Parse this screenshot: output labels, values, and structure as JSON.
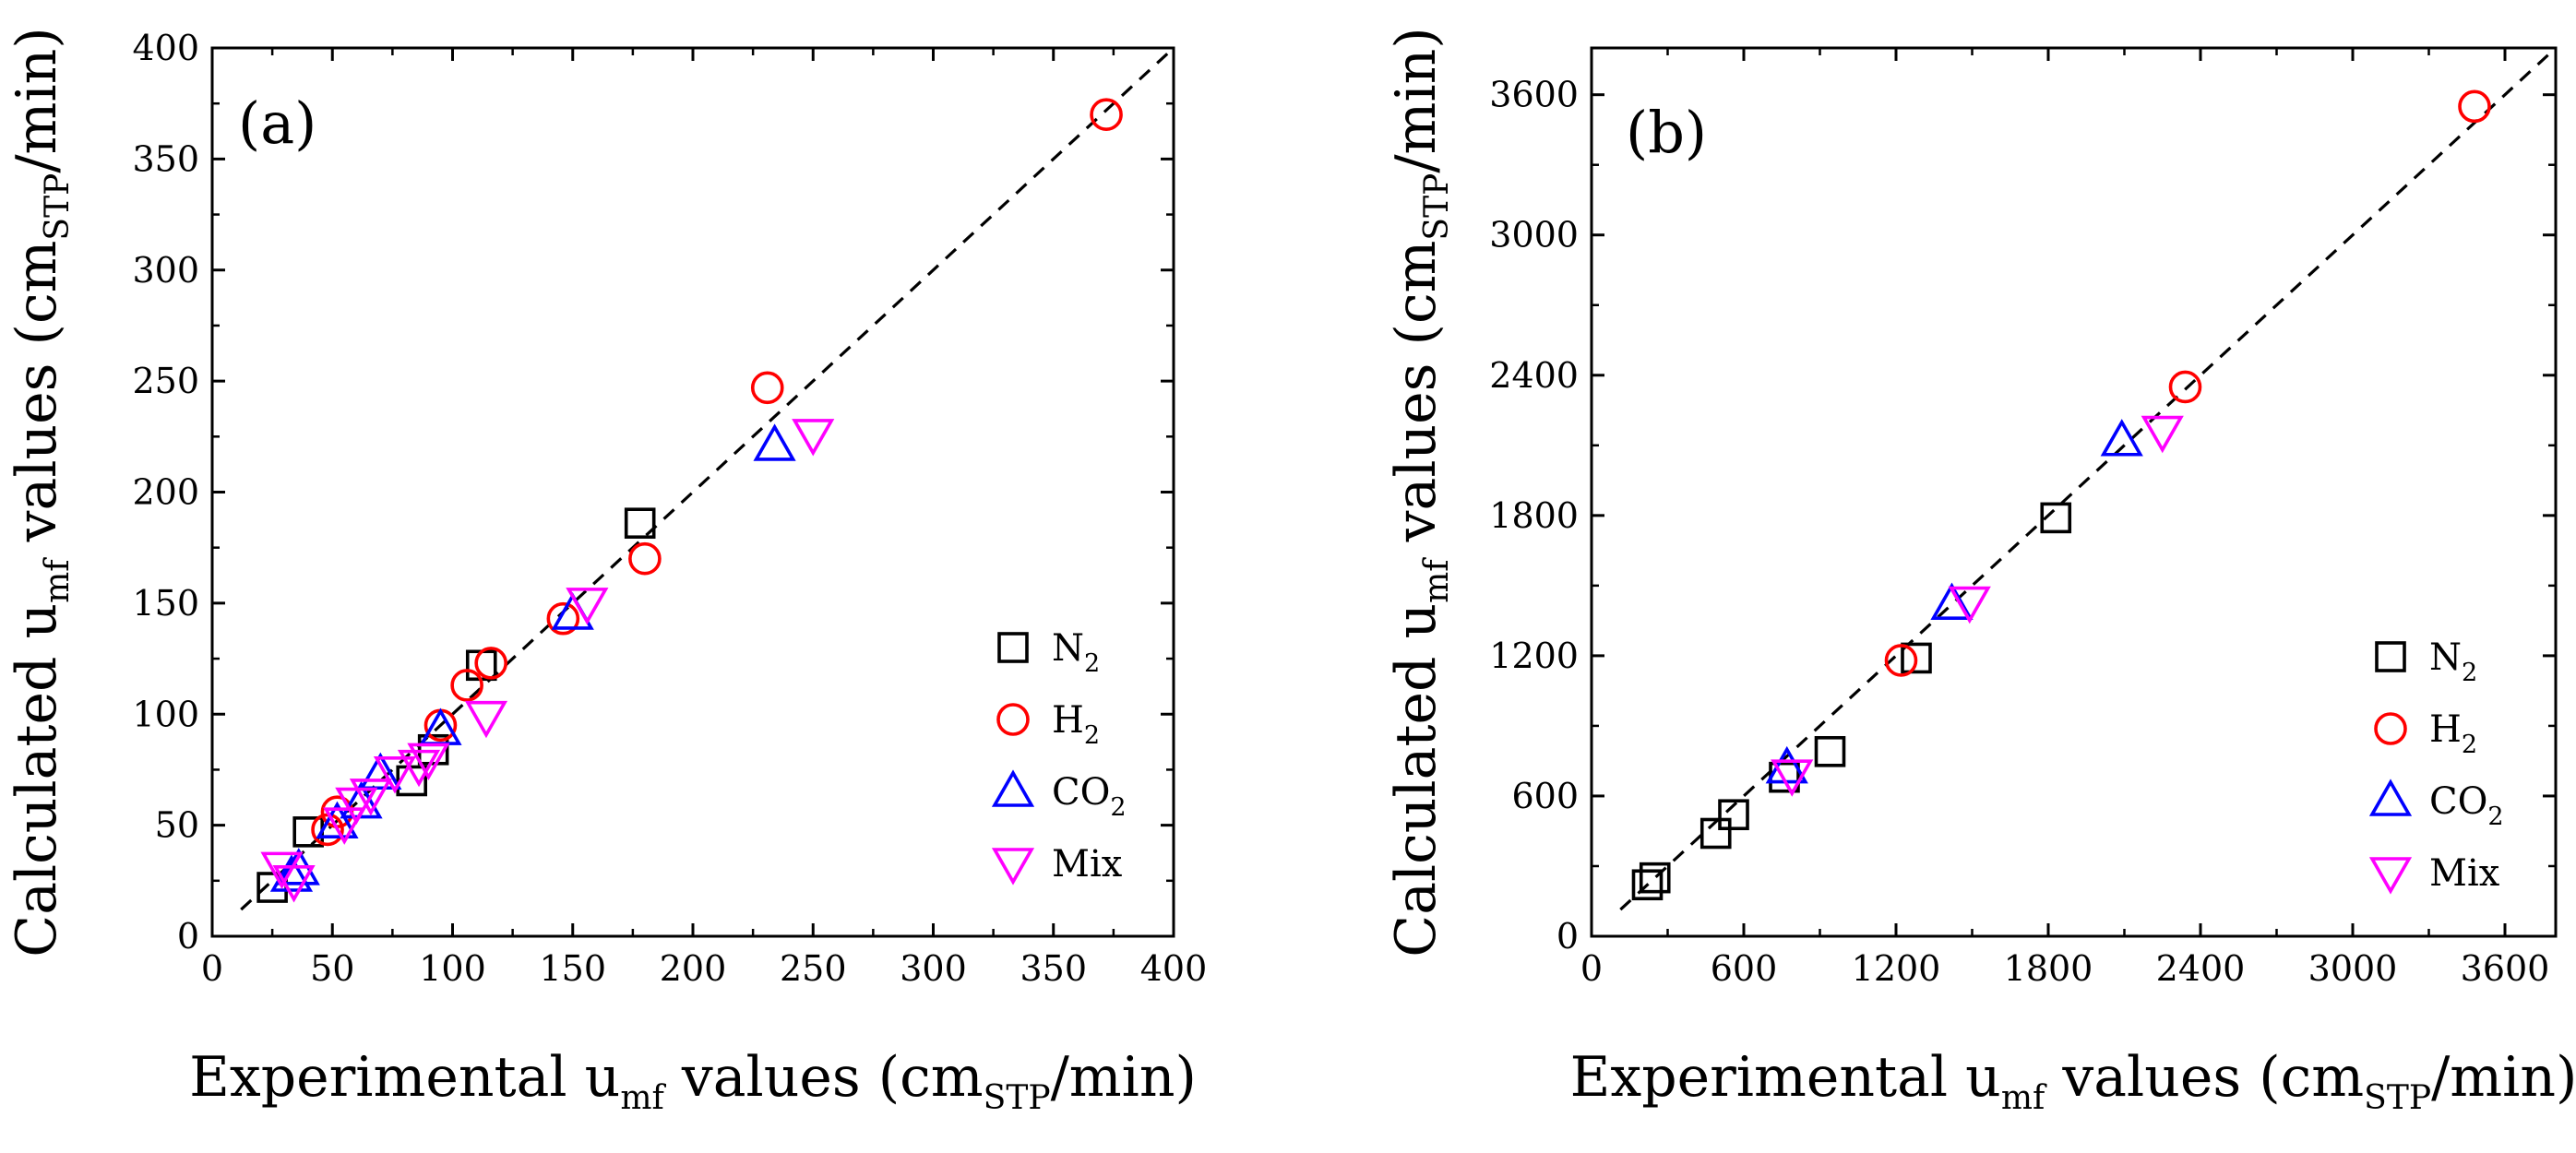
{
  "chart_data": [
    {
      "type": "scatter",
      "panel_label": "(a)",
      "xlabel": {
        "prefix": "Experimental u",
        "sub1": "mf",
        "middle": " values (cm",
        "sub2": "STP",
        "suffix": "/min)"
      },
      "ylabel": {
        "prefix": "Calculated u",
        "sub1": "mf",
        "middle": " values (cm",
        "sub2": "STP",
        "suffix": "/min)"
      },
      "xlim": [
        0,
        400
      ],
      "ylim": [
        0,
        400
      ],
      "xticks": [
        "0",
        "50",
        "100",
        "150",
        "200",
        "250",
        "300",
        "350",
        "400"
      ],
      "yticks": [
        "0",
        "50",
        "100",
        "150",
        "200",
        "250",
        "300",
        "350",
        "400"
      ],
      "parity_line": "y = x (dashed)",
      "legend_position": "lower-right",
      "series": [
        {
          "name": "N2",
          "label_main": "N",
          "label_sub": "2",
          "marker": "square",
          "color": "#000000",
          "points": [
            [
              25,
              22
            ],
            [
              40,
              47
            ],
            [
              83,
              70
            ],
            [
              92,
              84
            ],
            [
              112,
              122
            ],
            [
              178,
              186
            ]
          ]
        },
        {
          "name": "H2",
          "label_main": "H",
          "label_sub": "2",
          "marker": "circle",
          "color": "#ff0000",
          "points": [
            [
              48,
              48
            ],
            [
              52,
              56
            ],
            [
              95,
              95
            ],
            [
              106,
              113
            ],
            [
              116,
              123
            ],
            [
              146,
              143
            ],
            [
              180,
              170
            ],
            [
              231,
              247
            ],
            [
              372,
              370
            ]
          ]
        },
        {
          "name": "CO2",
          "label_main": "CO",
          "label_sub": "2",
          "marker": "triangle-up",
          "color": "#0000ff",
          "points": [
            [
              33,
              27
            ],
            [
              36,
              30
            ],
            [
              52,
              51
            ],
            [
              62,
              60
            ],
            [
              70,
              73
            ],
            [
              95,
              93
            ],
            [
              150,
              145
            ],
            [
              234,
              221
            ]
          ]
        },
        {
          "name": "Mix",
          "label_main": "Mix",
          "label_sub": "",
          "marker": "triangle-down",
          "color": "#ff00ff",
          "points": [
            [
              29,
              31
            ],
            [
              34,
              25
            ],
            [
              55,
              51
            ],
            [
              60,
              60
            ],
            [
              66,
              64
            ],
            [
              76,
              74
            ],
            [
              86,
              77
            ],
            [
              90,
              80
            ],
            [
              114,
              99
            ],
            [
              156,
              150
            ],
            [
              250,
              226
            ]
          ]
        }
      ]
    },
    {
      "type": "scatter",
      "panel_label": "(b)",
      "xlabel": {
        "prefix": "Experimental u",
        "sub1": "mf",
        "middle": " values (cm",
        "sub2": "STP",
        "suffix": "/min)"
      },
      "ylabel": {
        "prefix": "Calculated u",
        "sub1": "mf",
        "middle": " values (cm",
        "sub2": "STP",
        "suffix": "/min)"
      },
      "xlim": [
        0,
        3800
      ],
      "ylim": [
        0,
        3800
      ],
      "xticks": [
        "0",
        "600",
        "1200",
        "1800",
        "2400",
        "3000",
        "3600"
      ],
      "yticks": [
        "0",
        "600",
        "1200",
        "1800",
        "2400",
        "3000",
        "3600"
      ],
      "parity_line": "y = x (dashed)",
      "legend_position": "lower-right",
      "series": [
        {
          "name": "N2",
          "label_main": "N",
          "label_sub": "2",
          "marker": "square",
          "color": "#000000",
          "points": [
            [
              220,
              220
            ],
            [
              250,
              250
            ],
            [
              490,
              440
            ],
            [
              560,
              520
            ],
            [
              760,
              680
            ],
            [
              940,
              790
            ],
            [
              1280,
              1190
            ],
            [
              1830,
              1790
            ]
          ]
        },
        {
          "name": "H2",
          "label_main": "H",
          "label_sub": "2",
          "marker": "circle",
          "color": "#ff0000",
          "points": [
            [
              1220,
              1180
            ],
            [
              2340,
              2350
            ],
            [
              3480,
              3550
            ]
          ]
        },
        {
          "name": "CO2",
          "label_main": "CO",
          "label_sub": "2",
          "marker": "triangle-up",
          "color": "#0000ff",
          "points": [
            [
              770,
              720
            ],
            [
              1420,
              1420
            ],
            [
              2090,
              2120
            ]
          ]
        },
        {
          "name": "Mix",
          "label_main": "Mix",
          "label_sub": "",
          "marker": "triangle-down",
          "color": "#ff00ff",
          "points": [
            [
              790,
              690
            ],
            [
              1490,
              1430
            ],
            [
              2250,
              2160
            ]
          ]
        }
      ]
    }
  ]
}
